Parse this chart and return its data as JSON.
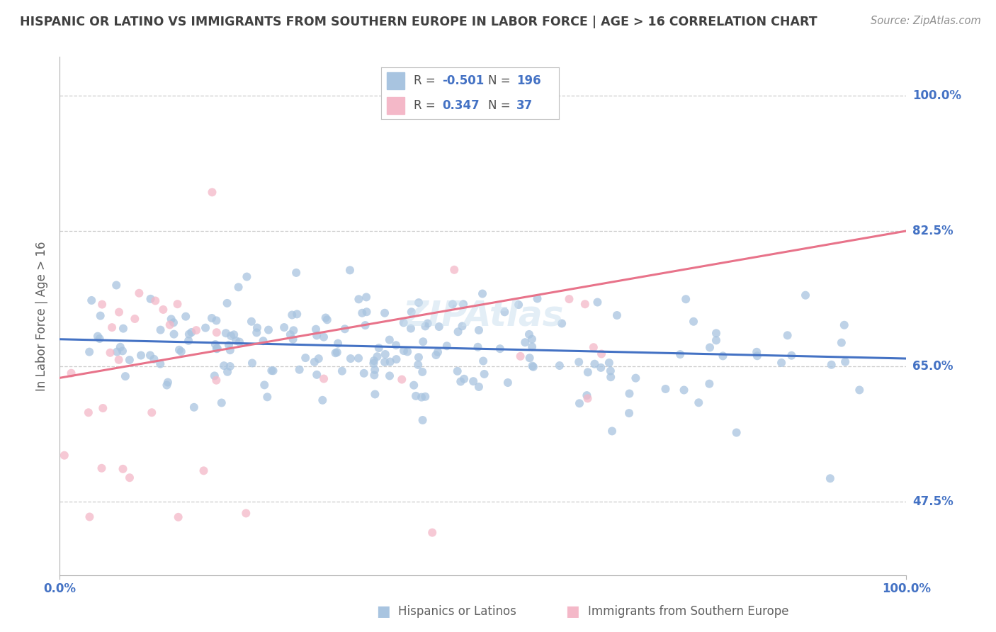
{
  "title": "HISPANIC OR LATINO VS IMMIGRANTS FROM SOUTHERN EUROPE IN LABOR FORCE | AGE > 16 CORRELATION CHART",
  "source": "Source: ZipAtlas.com",
  "ylabel": "In Labor Force | Age > 16",
  "yticks": [
    "47.5%",
    "65.0%",
    "82.5%",
    "100.0%"
  ],
  "ytick_values": [
    0.475,
    0.65,
    0.825,
    1.0
  ],
  "legend_R1": "-0.501",
  "legend_N1": "196",
  "legend_R2": "0.347",
  "legend_N2": "37",
  "legend_entry1": "Hispanics or Latinos",
  "legend_entry2": "Immigrants from Southern Europe",
  "R1": -0.501,
  "N1": 196,
  "R2": 0.347,
  "N2": 37,
  "blue_color": "#a8c4e0",
  "blue_line_color": "#4472c4",
  "pink_color": "#f4b8c8",
  "pink_line_color": "#e8738a",
  "title_color": "#404040",
  "source_color": "#909090",
  "axis_label_color": "#606060",
  "tick_color": "#4472c4",
  "background_color": "#ffffff",
  "grid_color": "#cccccc",
  "seed": 42,
  "xlim": [
    0.0,
    1.0
  ],
  "ylim": [
    0.38,
    1.05
  ],
  "blue_intercept": 0.685,
  "blue_slope": -0.025,
  "pink_intercept": 0.635,
  "pink_slope": 0.19
}
